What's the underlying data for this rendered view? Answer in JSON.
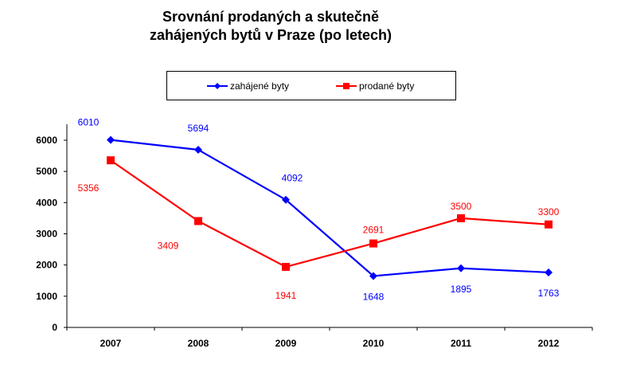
{
  "chart_data": {
    "type": "line",
    "title_lines": [
      "Srovnání prodaných a skutečně",
      "zahájených bytů v Praze (po letech)"
    ],
    "categories": [
      "2007",
      "2008",
      "2009",
      "2010",
      "2011",
      "2012"
    ],
    "series": [
      {
        "name": "zahájené byty",
        "color": "#0000ff",
        "marker": "diamond",
        "values": [
          6010,
          5694,
          4092,
          1648,
          1895,
          1763
        ]
      },
      {
        "name": "prodané byty",
        "color": "#ff0000",
        "marker": "square",
        "values": [
          5356,
          3409,
          1941,
          2691,
          3500,
          3300
        ]
      }
    ],
    "yticks": [
      0,
      1000,
      2000,
      3000,
      4000,
      5000,
      6000
    ],
    "ylim": [
      0,
      6000
    ],
    "xlabel": "",
    "ylabel": "",
    "grid": false,
    "legend_position": "top"
  }
}
